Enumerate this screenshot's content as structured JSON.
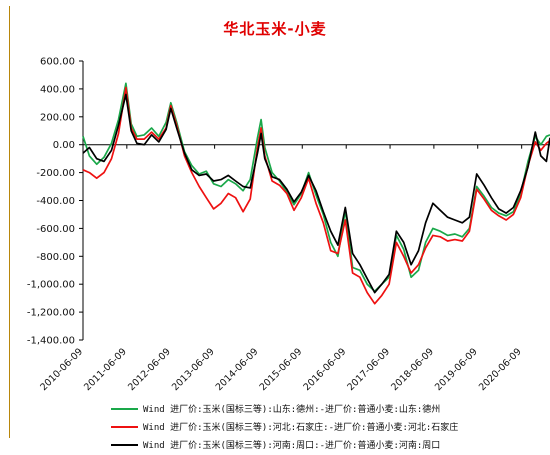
{
  "chart_data": {
    "type": "line",
    "title": "华北玉米-小麦",
    "xlabel": "",
    "ylabel": "",
    "ylim": [
      -1400,
      600
    ],
    "y_ticks": [
      600,
      400,
      200,
      0,
      -200,
      -400,
      -600,
      -800,
      -1000,
      -1200,
      -1400
    ],
    "y_tick_labels": [
      "600.00",
      "400.00",
      "200.00",
      "0.00",
      "-200.00",
      "-400.00",
      "-600.00",
      "-800.00",
      "-1,000.00",
      "-1,200.00",
      "-1,400.00"
    ],
    "x_tick_labels": [
      "2010-06-09",
      "2011-06-09",
      "2012-06-09",
      "2013-06-09",
      "2014-06-09",
      "2015-06-09",
      "2016-06-09",
      "2017-06-09",
      "2018-06-09",
      "2019-06-09",
      "2020-06-09"
    ],
    "x_range": [
      "2010-06-09",
      "2021-01-31"
    ],
    "grid": false,
    "legend_position": "bottom",
    "series": [
      {
        "name": "Wind 进厂价:玉米(国标三等):山东:德州:-进厂价:普通小麦:山东:德州",
        "color": "#1aa84a",
        "points": [
          [
            "2010-06-09",
            60
          ],
          [
            "2010-08-01",
            -80
          ],
          [
            "2010-10-01",
            -140
          ],
          [
            "2010-12-01",
            -90
          ],
          [
            "2011-02-01",
            10
          ],
          [
            "2011-04-01",
            180
          ],
          [
            "2011-06-01",
            440
          ],
          [
            "2011-07-15",
            150
          ],
          [
            "2011-09-01",
            60
          ],
          [
            "2011-11-01",
            70
          ],
          [
            "2012-01-01",
            120
          ],
          [
            "2012-03-01",
            60
          ],
          [
            "2012-05-01",
            160
          ],
          [
            "2012-06-09",
            300
          ],
          [
            "2012-08-01",
            150
          ],
          [
            "2012-10-01",
            -50
          ],
          [
            "2012-12-01",
            -150
          ],
          [
            "2013-02-01",
            -210
          ],
          [
            "2013-04-01",
            -190
          ],
          [
            "2013-06-01",
            -280
          ],
          [
            "2013-08-01",
            -300
          ],
          [
            "2013-10-01",
            -250
          ],
          [
            "2013-12-01",
            -280
          ],
          [
            "2014-02-01",
            -330
          ],
          [
            "2014-04-01",
            -250
          ],
          [
            "2014-06-01",
            50
          ],
          [
            "2014-07-01",
            180
          ],
          [
            "2014-08-01",
            -20
          ],
          [
            "2014-10-01",
            -200
          ],
          [
            "2014-12-01",
            -260
          ],
          [
            "2015-02-01",
            -340
          ],
          [
            "2015-04-01",
            -430
          ],
          [
            "2015-06-01",
            -350
          ],
          [
            "2015-08-01",
            -200
          ],
          [
            "2015-10-01",
            -360
          ],
          [
            "2015-12-01",
            -500
          ],
          [
            "2016-02-01",
            -700
          ],
          [
            "2016-04-01",
            -800
          ],
          [
            "2016-06-01",
            -470
          ],
          [
            "2016-08-01",
            -880
          ],
          [
            "2016-10-01",
            -900
          ],
          [
            "2016-12-01",
            -1000
          ],
          [
            "2017-02-01",
            -1050
          ],
          [
            "2017-04-01",
            -1000
          ],
          [
            "2017-06-01",
            -950
          ],
          [
            "2017-08-01",
            -650
          ],
          [
            "2017-10-01",
            -750
          ],
          [
            "2017-12-01",
            -950
          ],
          [
            "2018-02-01",
            -900
          ],
          [
            "2018-04-01",
            -700
          ],
          [
            "2018-06-01",
            -600
          ],
          [
            "2018-08-01",
            -620
          ],
          [
            "2018-10-01",
            -650
          ],
          [
            "2018-12-01",
            -640
          ],
          [
            "2019-02-01",
            -660
          ],
          [
            "2019-04-01",
            -600
          ],
          [
            "2019-06-01",
            -300
          ],
          [
            "2019-08-01",
            -370
          ],
          [
            "2019-10-01",
            -450
          ],
          [
            "2019-12-01",
            -490
          ],
          [
            "2020-02-01",
            -510
          ],
          [
            "2020-04-01",
            -480
          ],
          [
            "2020-06-01",
            -350
          ],
          [
            "2020-08-01",
            -120
          ],
          [
            "2020-10-01",
            60
          ],
          [
            "2020-11-15",
            0
          ],
          [
            "2021-01-01",
            60
          ],
          [
            "2021-01-31",
            70
          ]
        ]
      },
      {
        "name": "Wind 进厂价:玉米(国标三等):河北:石家庄:-进厂价:普通小麦:河北:石家庄",
        "color": "#ee1111",
        "points": [
          [
            "2010-06-09",
            -180
          ],
          [
            "2010-08-01",
            -200
          ],
          [
            "2010-10-01",
            -240
          ],
          [
            "2010-12-01",
            -200
          ],
          [
            "2011-02-01",
            -100
          ],
          [
            "2011-04-01",
            80
          ],
          [
            "2011-06-01",
            410
          ],
          [
            "2011-07-15",
            120
          ],
          [
            "2011-09-01",
            40
          ],
          [
            "2011-11-01",
            40
          ],
          [
            "2012-01-01",
            90
          ],
          [
            "2012-03-01",
            40
          ],
          [
            "2012-05-01",
            120
          ],
          [
            "2012-06-09",
            280
          ],
          [
            "2012-08-01",
            130
          ],
          [
            "2012-10-01",
            -80
          ],
          [
            "2012-12-01",
            -200
          ],
          [
            "2013-02-01",
            -300
          ],
          [
            "2013-04-01",
            -380
          ],
          [
            "2013-06-01",
            -460
          ],
          [
            "2013-08-01",
            -420
          ],
          [
            "2013-10-01",
            -350
          ],
          [
            "2013-12-01",
            -380
          ],
          [
            "2014-02-01",
            -480
          ],
          [
            "2014-04-01",
            -390
          ],
          [
            "2014-06-01",
            -20
          ],
          [
            "2014-07-01",
            120
          ],
          [
            "2014-08-01",
            -80
          ],
          [
            "2014-10-01",
            -260
          ],
          [
            "2014-12-01",
            -290
          ],
          [
            "2015-02-01",
            -350
          ],
          [
            "2015-04-01",
            -470
          ],
          [
            "2015-06-01",
            -380
          ],
          [
            "2015-08-01",
            -240
          ],
          [
            "2015-10-01",
            -420
          ],
          [
            "2015-12-01",
            -560
          ],
          [
            "2016-02-01",
            -760
          ],
          [
            "2016-04-01",
            -780
          ],
          [
            "2016-06-01",
            -540
          ],
          [
            "2016-08-01",
            -920
          ],
          [
            "2016-10-01",
            -950
          ],
          [
            "2016-12-01",
            -1060
          ],
          [
            "2017-02-01",
            -1140
          ],
          [
            "2017-04-01",
            -1080
          ],
          [
            "2017-06-01",
            -1000
          ],
          [
            "2017-08-01",
            -700
          ],
          [
            "2017-10-01",
            -800
          ],
          [
            "2017-12-01",
            -920
          ],
          [
            "2018-02-01",
            -860
          ],
          [
            "2018-04-01",
            -740
          ],
          [
            "2018-06-01",
            -650
          ],
          [
            "2018-08-01",
            -660
          ],
          [
            "2018-10-01",
            -690
          ],
          [
            "2018-12-01",
            -680
          ],
          [
            "2019-02-01",
            -690
          ],
          [
            "2019-04-01",
            -620
          ],
          [
            "2019-06-01",
            -320
          ],
          [
            "2019-08-01",
            -390
          ],
          [
            "2019-10-01",
            -470
          ],
          [
            "2019-12-01",
            -510
          ],
          [
            "2020-02-01",
            -540
          ],
          [
            "2020-04-01",
            -500
          ],
          [
            "2020-06-01",
            -380
          ],
          [
            "2020-08-01",
            -150
          ],
          [
            "2020-10-01",
            20
          ],
          [
            "2020-11-15",
            -40
          ],
          [
            "2021-01-01",
            10
          ],
          [
            "2021-01-31",
            30
          ]
        ]
      },
      {
        "name": "Wind 进厂价:玉米(国标三等):河南:周口:-进厂价:普通小麦:河南:周口",
        "color": "#000000",
        "points": [
          [
            "2010-06-09",
            -60
          ],
          [
            "2010-08-01",
            -20
          ],
          [
            "2010-10-01",
            -100
          ],
          [
            "2010-12-01",
            -120
          ],
          [
            "2011-02-01",
            -40
          ],
          [
            "2011-04-01",
            140
          ],
          [
            "2011-06-01",
            360
          ],
          [
            "2011-07-15",
            100
          ],
          [
            "2011-09-01",
            10
          ],
          [
            "2011-11-01",
            0
          ],
          [
            "2012-01-01",
            70
          ],
          [
            "2012-03-01",
            20
          ],
          [
            "2012-05-01",
            110
          ],
          [
            "2012-06-09",
            260
          ],
          [
            "2012-08-01",
            110
          ],
          [
            "2012-10-01",
            -60
          ],
          [
            "2012-12-01",
            -180
          ],
          [
            "2013-02-01",
            -220
          ],
          [
            "2013-04-01",
            -210
          ],
          [
            "2013-06-01",
            -260
          ],
          [
            "2013-08-01",
            -250
          ],
          [
            "2013-10-01",
            -220
          ],
          [
            "2013-12-01",
            -260
          ],
          [
            "2014-02-01",
            -300
          ],
          [
            "2014-04-01",
            -310
          ],
          [
            "2014-06-01",
            -60
          ],
          [
            "2014-07-01",
            80
          ],
          [
            "2014-08-01",
            -100
          ],
          [
            "2014-10-01",
            -230
          ],
          [
            "2014-12-01",
            -250
          ],
          [
            "2015-02-01",
            -320
          ],
          [
            "2015-04-01",
            -410
          ],
          [
            "2015-06-01",
            -340
          ],
          [
            "2015-08-01",
            -220
          ],
          [
            "2015-10-01",
            -330
          ],
          [
            "2015-12-01",
            -480
          ],
          [
            "2016-02-01",
            -620
          ],
          [
            "2016-04-01",
            -720
          ],
          [
            "2016-06-01",
            -450
          ],
          [
            "2016-08-01",
            -780
          ],
          [
            "2016-10-01",
            -860
          ],
          [
            "2016-12-01",
            -960
          ],
          [
            "2017-02-01",
            -1060
          ],
          [
            "2017-04-01",
            -1000
          ],
          [
            "2017-06-01",
            -930
          ],
          [
            "2017-08-01",
            -620
          ],
          [
            "2017-10-01",
            -700
          ],
          [
            "2017-12-01",
            -860
          ],
          [
            "2018-02-01",
            -760
          ],
          [
            "2018-04-01",
            -560
          ],
          [
            "2018-06-01",
            -420
          ],
          [
            "2018-08-01",
            -470
          ],
          [
            "2018-10-01",
            -520
          ],
          [
            "2018-12-01",
            -540
          ],
          [
            "2019-02-01",
            -560
          ],
          [
            "2019-04-01",
            -520
          ],
          [
            "2019-06-01",
            -210
          ],
          [
            "2019-08-01",
            -290
          ],
          [
            "2019-10-01",
            -380
          ],
          [
            "2019-12-01",
            -460
          ],
          [
            "2020-02-01",
            -490
          ],
          [
            "2020-04-01",
            -450
          ],
          [
            "2020-06-01",
            -330
          ],
          [
            "2020-08-01",
            -160
          ],
          [
            "2020-10-01",
            90
          ],
          [
            "2020-11-15",
            -80
          ],
          [
            "2021-01-01",
            -120
          ],
          [
            "2021-01-31",
            50
          ]
        ]
      }
    ]
  }
}
